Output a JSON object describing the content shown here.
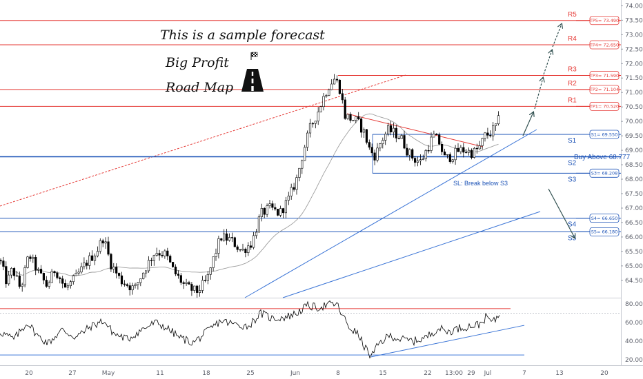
{
  "header": {
    "line1": "This is a sample forecast",
    "line2": "Big Profit",
    "line3": "Road Map"
  },
  "colors": {
    "resistance": "#e53935",
    "support": "#1e54b7",
    "support_strong": "#1e54b7",
    "candle": "#000000",
    "ma": "#9e9e9e",
    "trendline_blue": "#3a74d6",
    "trendline_red": "#e53935",
    "arrow": "#2f4f4f",
    "rsi_line": "#000000"
  },
  "icons": [
    "checkered-flag-icon",
    "road-icon"
  ],
  "chart_data": {
    "type": "candlestick",
    "price_axis": {
      "ylim": [
        63.9,
        74.2
      ],
      "ticks": [
        "74.000",
        "73.500",
        "73.000",
        "72.500",
        "72.000",
        "71.500",
        "71.000",
        "70.500",
        "70.000",
        "69.500",
        "69.000",
        "68.500",
        "68.000",
        "67.500",
        "67.000",
        "66.500",
        "66.000",
        "65.500",
        "65.000",
        "64.500"
      ]
    },
    "x_axis": {
      "tick_labels": [
        "20",
        "27",
        "May",
        "11",
        "18",
        "25",
        "Jun",
        "8",
        "15",
        "22",
        "13:00",
        "29",
        "Jul",
        "7",
        "13",
        "20"
      ]
    },
    "levels": [
      {
        "id": "r5",
        "label": "R5",
        "box": "TP5= 73.490",
        "value": 73.49,
        "kind": "resistance"
      },
      {
        "id": "r4",
        "label": "R4",
        "box": "TP4= 72.650",
        "value": 72.65,
        "kind": "resistance"
      },
      {
        "id": "r3",
        "label": "R3",
        "box": "TP3= 71.590",
        "value": 71.59,
        "kind": "resistance"
      },
      {
        "id": "r2",
        "label": "R2",
        "box": "TP2= 71.104",
        "value": 71.104,
        "kind": "resistance"
      },
      {
        "id": "r1",
        "label": "R1",
        "box": "TP1= 70.520",
        "value": 70.52,
        "kind": "resistance"
      },
      {
        "id": "s1",
        "label": "S1",
        "box": "S1= 69.550",
        "value": 69.55,
        "kind": "support"
      },
      {
        "id": "s2",
        "label": "S2",
        "box": "",
        "value": 68.777,
        "kind": "support"
      },
      {
        "id": "s3",
        "label": "S3",
        "box": "S3= 68.208",
        "value": 68.208,
        "kind": "support"
      },
      {
        "id": "s4",
        "label": "S4",
        "box": "S4= 66.650",
        "value": 66.65,
        "kind": "support"
      },
      {
        "id": "s5",
        "label": "S5",
        "box": "S5= 66.180",
        "value": 66.18,
        "kind": "support"
      }
    ],
    "annotations": {
      "buy": "Buy Above 68.777",
      "stop": "SL: Break below S3"
    },
    "rsi": {
      "ylim": [
        14,
        86
      ],
      "ticks": [
        "80.00",
        "60.00",
        "40.00",
        "20.00"
      ],
      "upper_level": 75,
      "lower_level": 25
    }
  }
}
